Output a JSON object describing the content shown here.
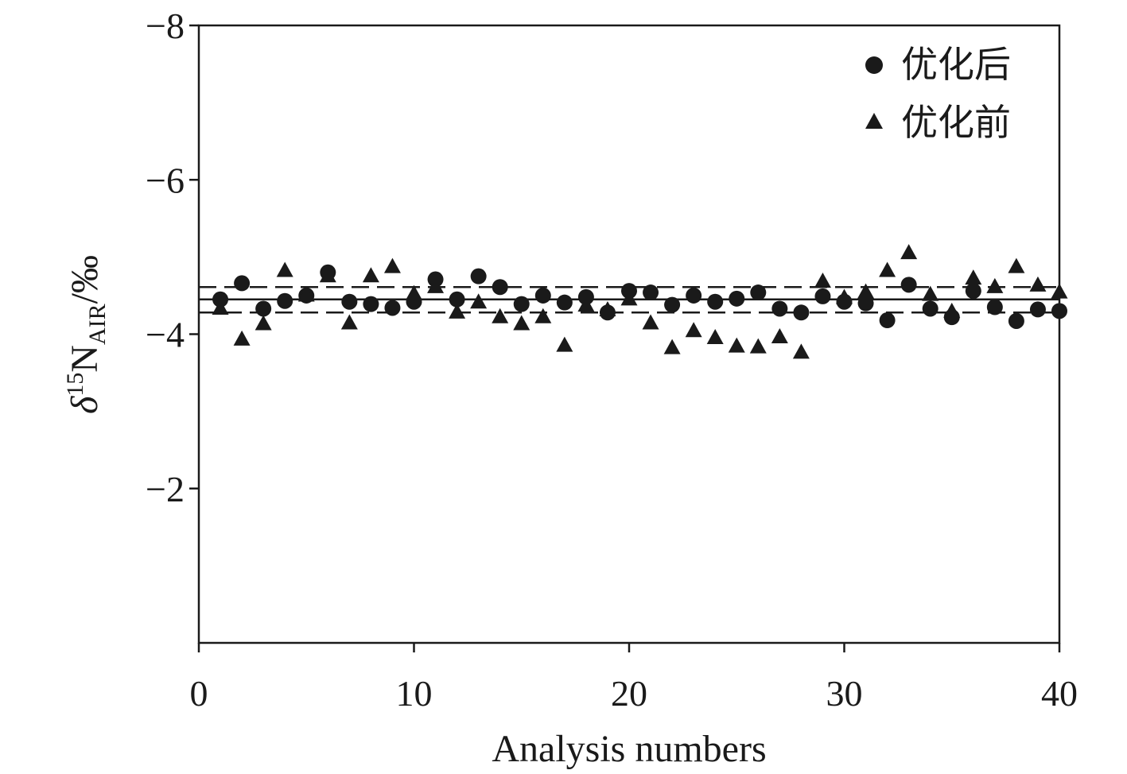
{
  "chart_data": {
    "type": "scatter",
    "title": "",
    "xlabel": "Analysis numbers",
    "ylabel": {
      "symbol": "δ",
      "superscript": "15",
      "base": "N",
      "subscript": "AIR",
      "unit": "/‰"
    },
    "xlim": [
      0,
      40
    ],
    "ylim": [
      -8,
      0
    ],
    "y_inverted": true,
    "x_ticks": [
      0,
      10,
      20,
      30,
      40
    ],
    "x_tick_labels": [
      "0",
      "10",
      "20",
      "30",
      "40"
    ],
    "y_ticks": [
      -8,
      -6,
      -4,
      -2
    ],
    "y_tick_labels": [
      "−8",
      "−6",
      "−4",
      "−2"
    ],
    "grid": false,
    "legend_position": "top-right",
    "x": [
      1,
      2,
      3,
      4,
      5,
      6,
      7,
      8,
      9,
      10,
      11,
      12,
      13,
      14,
      15,
      16,
      17,
      18,
      19,
      20,
      21,
      22,
      23,
      24,
      25,
      26,
      27,
      28,
      29,
      30,
      31,
      32,
      33,
      34,
      35,
      36,
      37,
      38,
      39,
      40
    ],
    "series": [
      {
        "name": "优化后",
        "marker": "circle",
        "values": [
          -4.45,
          -4.66,
          -4.33,
          -4.43,
          -4.5,
          -4.8,
          -4.42,
          -4.39,
          -4.34,
          -4.42,
          -4.71,
          -4.45,
          -4.75,
          -4.61,
          -4.39,
          -4.5,
          -4.41,
          -4.48,
          -4.28,
          -4.56,
          -4.54,
          -4.38,
          -4.5,
          -4.42,
          -4.46,
          -4.54,
          -4.33,
          -4.28,
          -4.49,
          -4.42,
          -4.4,
          -4.18,
          -4.64,
          -4.33,
          -4.22,
          -4.56,
          -4.35,
          -4.17,
          -4.32,
          -4.3
        ]
      },
      {
        "name": "优化前",
        "marker": "triangle",
        "values": [
          -4.33,
          -3.93,
          -4.13,
          -4.82,
          -4.5,
          -4.75,
          -4.14,
          -4.75,
          -4.87,
          -4.52,
          -4.61,
          -4.28,
          -4.41,
          -4.22,
          -4.13,
          -4.22,
          -3.85,
          -4.37,
          -4.31,
          -4.45,
          -4.14,
          -3.82,
          -4.04,
          -3.95,
          -3.84,
          -3.83,
          -3.96,
          -3.76,
          -4.68,
          -4.47,
          -4.54,
          -4.82,
          -5.05,
          -4.51,
          -4.29,
          -4.72,
          -4.61,
          -4.87,
          -4.63,
          -4.54
        ]
      }
    ],
    "reference_lines": [
      {
        "style": "solid",
        "y": -4.45
      },
      {
        "style": "dashed",
        "y": -4.61
      },
      {
        "style": "dashed",
        "y": -4.28
      }
    ]
  }
}
